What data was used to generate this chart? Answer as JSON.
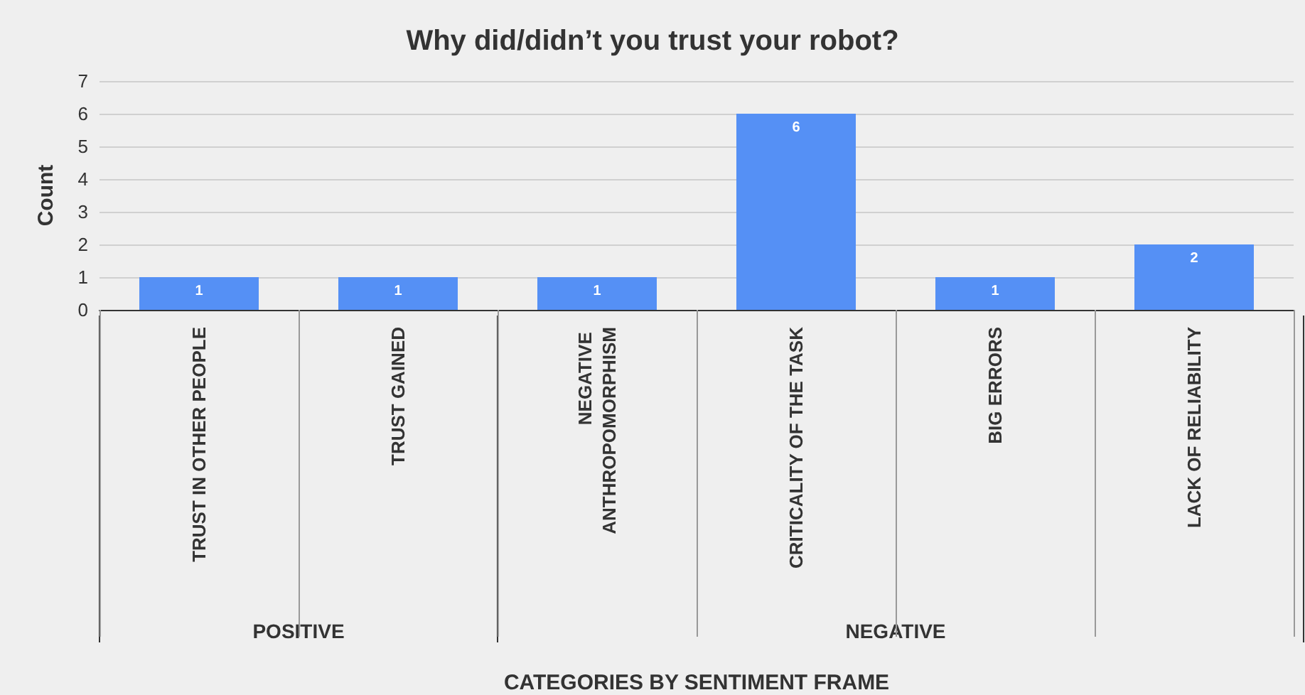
{
  "chart_data": {
    "type": "bar",
    "title": "Why did/didn’t you trust your robot?",
    "xlabel": "CATEGORIES BY SENTIMENT FRAME",
    "ylabel": "Count",
    "categories": [
      "TRUST IN OTHER PEOPLE",
      "TRUST GAINED",
      "NEGATIVE ANTHROPOMORPHISM",
      "CRITICALITY OF THE TASK",
      "BIG ERRORS",
      "LACK OF RELIABILITY"
    ],
    "values": [
      1,
      1,
      1,
      6,
      1,
      2
    ],
    "color": "#5590f5",
    "ylim": [
      0,
      7
    ],
    "yticks": [
      0,
      1,
      2,
      3,
      4,
      5,
      6,
      7
    ],
    "grid": "y",
    "data_labels": true,
    "annotations": [
      "POSITIVE",
      "NEGATIVE"
    ]
  }
}
